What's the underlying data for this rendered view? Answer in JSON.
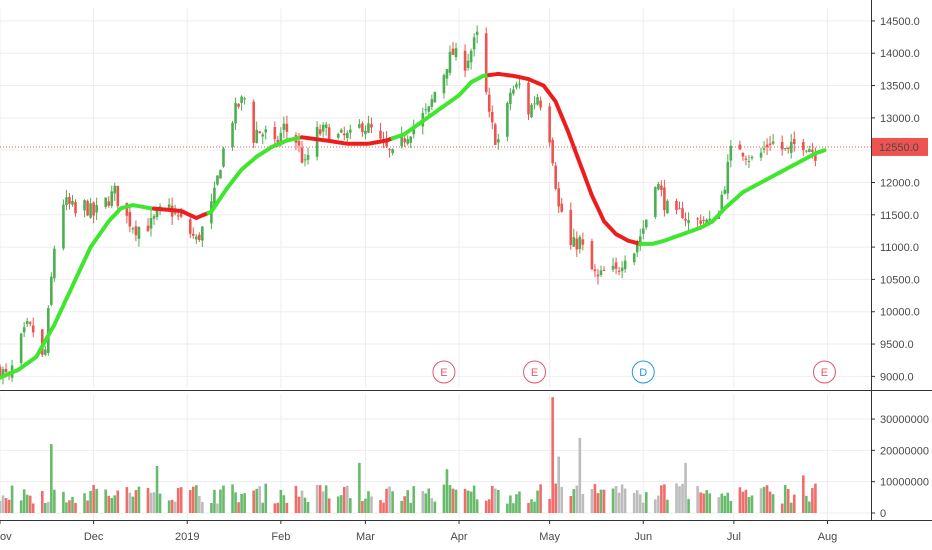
{
  "chart_data": {
    "type": "candlestick",
    "price_axis": {
      "ticks": [
        "14500.0",
        "14000.0",
        "13500.0",
        "13000.0",
        "12500.0",
        "12000.0",
        "11500.0",
        "11000.0",
        "10500.0",
        "10000.0",
        "9500.0",
        "9000.0"
      ],
      "tick_values": [
        14500,
        14000,
        13500,
        13000,
        12500,
        12000,
        11500,
        11000,
        10500,
        10000,
        9500,
        9000
      ],
      "range": [
        8820,
        14700
      ]
    },
    "volume_axis": {
      "ticks": [
        "30000000",
        "20000000",
        "10000000",
        "0"
      ],
      "tick_values": [
        30000000,
        20000000,
        10000000,
        0
      ],
      "range": [
        0,
        38000000
      ]
    },
    "x_axis": {
      "labels": [
        "ov",
        "Dec",
        "2019",
        "Feb",
        "Mar",
        "Apr",
        "May",
        "Jun",
        "Jul",
        "Aug"
      ],
      "label_days": [
        0,
        31,
        62,
        93,
        121,
        152,
        182,
        213,
        243,
        274
      ]
    },
    "last_price": {
      "label": "12550.0",
      "value": 12550,
      "color": "#ef5350"
    },
    "colors": {
      "up": "#4caf50",
      "down": "#ef5350",
      "ma_up": "#3ee62e",
      "ma_down": "#ee1d1d",
      "vol_grey": "#b0b0b0",
      "axis": "#333333",
      "grid": "#eeeeee",
      "event": "#e15a68",
      "dividend": "#2196f3"
    },
    "events": [
      {
        "label": "E",
        "type": "earnings",
        "day": 147
      },
      {
        "label": "E",
        "type": "earnings",
        "day": 177
      },
      {
        "label": "D",
        "type": "dividend",
        "day": 213
      },
      {
        "label": "E",
        "type": "earnings",
        "day": 273
      }
    ],
    "price_path": [
      [
        0,
        9100
      ],
      [
        3,
        8950
      ],
      [
        6,
        9450
      ],
      [
        9,
        9750
      ],
      [
        11,
        9700
      ],
      [
        13,
        9150
      ],
      [
        15,
        9400
      ],
      [
        17,
        10500
      ],
      [
        19,
        11500
      ],
      [
        21,
        11700
      ],
      [
        24,
        11600
      ],
      [
        26,
        11400
      ],
      [
        28,
        11650
      ],
      [
        31,
        11500
      ],
      [
        35,
        11700
      ],
      [
        38,
        11850
      ],
      [
        41,
        11500
      ],
      [
        45,
        11300
      ],
      [
        50,
        11350
      ],
      [
        55,
        11650
      ],
      [
        60,
        11400
      ],
      [
        65,
        11100
      ],
      [
        69,
        11450
      ],
      [
        71,
        11800
      ],
      [
        73,
        12300
      ],
      [
        76,
        12900
      ],
      [
        79,
        13200
      ],
      [
        81,
        13300
      ],
      [
        83,
        12600
      ],
      [
        85,
        12800
      ],
      [
        88,
        12750
      ],
      [
        91,
        12550
      ],
      [
        94,
        12850
      ],
      [
        98,
        12650
      ],
      [
        101,
        12250
      ],
      [
        104,
        12750
      ],
      [
        108,
        12800
      ],
      [
        112,
        12700
      ],
      [
        116,
        12700
      ],
      [
        120,
        12900
      ],
      [
        123,
        12800
      ],
      [
        126,
        12600
      ],
      [
        130,
        12400
      ],
      [
        134,
        12700
      ],
      [
        138,
        12950
      ],
      [
        142,
        13100
      ],
      [
        144,
        13400
      ],
      [
        146,
        13550
      ],
      [
        148,
        13850
      ],
      [
        150,
        14000
      ],
      [
        152,
        13900
      ],
      [
        154,
        13850
      ],
      [
        156,
        14050
      ],
      [
        158,
        14250
      ],
      [
        160,
        13700
      ],
      [
        162,
        13000
      ],
      [
        164,
        12700
      ],
      [
        166,
        12600
      ],
      [
        169,
        13400
      ],
      [
        172,
        13500
      ],
      [
        175,
        13100
      ],
      [
        178,
        13350
      ],
      [
        181,
        13050
      ],
      [
        183,
        12400
      ],
      [
        185,
        11600
      ],
      [
        187,
        11500
      ],
      [
        189,
        11000
      ],
      [
        192,
        11100
      ],
      [
        195,
        10700
      ],
      [
        198,
        10500
      ],
      [
        201,
        10650
      ],
      [
        204,
        10600
      ],
      [
        207,
        10900
      ],
      [
        210,
        10950
      ],
      [
        213,
        11300
      ],
      [
        215,
        11600
      ],
      [
        217,
        12050
      ],
      [
        220,
        11700
      ],
      [
        223,
        11400
      ],
      [
        226,
        11550
      ],
      [
        229,
        11300
      ],
      [
        232,
        11450
      ],
      [
        235,
        11350
      ],
      [
        237,
        11400
      ],
      [
        240,
        12000
      ],
      [
        243,
        12700
      ],
      [
        246,
        12500
      ],
      [
        249,
        12350
      ],
      [
        252,
        12450
      ],
      [
        255,
        12650
      ],
      [
        258,
        12550
      ],
      [
        261,
        12450
      ],
      [
        264,
        12650
      ],
      [
        267,
        12600
      ],
      [
        270,
        12450
      ],
      [
        272,
        12550
      ]
    ],
    "ma_path": [
      [
        0,
        8980
      ],
      [
        6,
        9100
      ],
      [
        12,
        9300
      ],
      [
        18,
        9800
      ],
      [
        24,
        10400
      ],
      [
        30,
        11000
      ],
      [
        36,
        11400
      ],
      [
        40,
        11600
      ],
      [
        44,
        11650
      ],
      [
        50,
        11600
      ],
      [
        55,
        11580
      ],
      [
        60,
        11560
      ],
      [
        65,
        11450
      ],
      [
        70,
        11550
      ],
      [
        75,
        11900
      ],
      [
        80,
        12200
      ],
      [
        85,
        12400
      ],
      [
        90,
        12550
      ],
      [
        95,
        12650
      ],
      [
        100,
        12700
      ],
      [
        108,
        12650
      ],
      [
        115,
        12600
      ],
      [
        122,
        12600
      ],
      [
        128,
        12650
      ],
      [
        134,
        12750
      ],
      [
        140,
        12950
      ],
      [
        146,
        13150
      ],
      [
        152,
        13350
      ],
      [
        156,
        13550
      ],
      [
        160,
        13650
      ],
      [
        165,
        13680
      ],
      [
        170,
        13650
      ],
      [
        175,
        13600
      ],
      [
        180,
        13500
      ],
      [
        184,
        13250
      ],
      [
        188,
        12800
      ],
      [
        192,
        12300
      ],
      [
        196,
        11800
      ],
      [
        200,
        11400
      ],
      [
        204,
        11200
      ],
      [
        208,
        11100
      ],
      [
        212,
        11050
      ],
      [
        216,
        11050
      ],
      [
        220,
        11100
      ],
      [
        226,
        11200
      ],
      [
        232,
        11300
      ],
      [
        236,
        11400
      ],
      [
        240,
        11600
      ],
      [
        246,
        11850
      ],
      [
        252,
        12000
      ],
      [
        258,
        12150
      ],
      [
        264,
        12300
      ],
      [
        270,
        12450
      ],
      [
        273,
        12500
      ]
    ],
    "ma_segments": [
      {
        "from_day": 0,
        "to_day": 51,
        "trend": "up"
      },
      {
        "from_day": 51,
        "to_day": 69,
        "trend": "down"
      },
      {
        "from_day": 69,
        "to_day": 100,
        "trend": "up"
      },
      {
        "from_day": 100,
        "to_day": 130,
        "trend": "down"
      },
      {
        "from_day": 130,
        "to_day": 162,
        "trend": "up"
      },
      {
        "from_day": 162,
        "to_day": 212,
        "trend": "down"
      },
      {
        "from_day": 212,
        "to_day": 273,
        "trend": "up"
      }
    ],
    "volume_spikes": [
      {
        "day": 17,
        "value": 22000000
      },
      {
        "day": 33,
        "value": 16000000
      },
      {
        "day": 52,
        "value": 15000000
      },
      {
        "day": 75,
        "value": 18000000
      },
      {
        "day": 119,
        "value": 16000000
      },
      {
        "day": 148,
        "value": 14000000
      },
      {
        "day": 183,
        "value": 37000000
      },
      {
        "day": 185,
        "value": 18000000
      },
      {
        "day": 188,
        "value": 17000000
      },
      {
        "day": 192,
        "value": 24000000
      },
      {
        "day": 227,
        "value": 16000000
      },
      {
        "day": 243,
        "value": 16000000
      },
      {
        "day": 266,
        "value": 12000000
      }
    ]
  }
}
